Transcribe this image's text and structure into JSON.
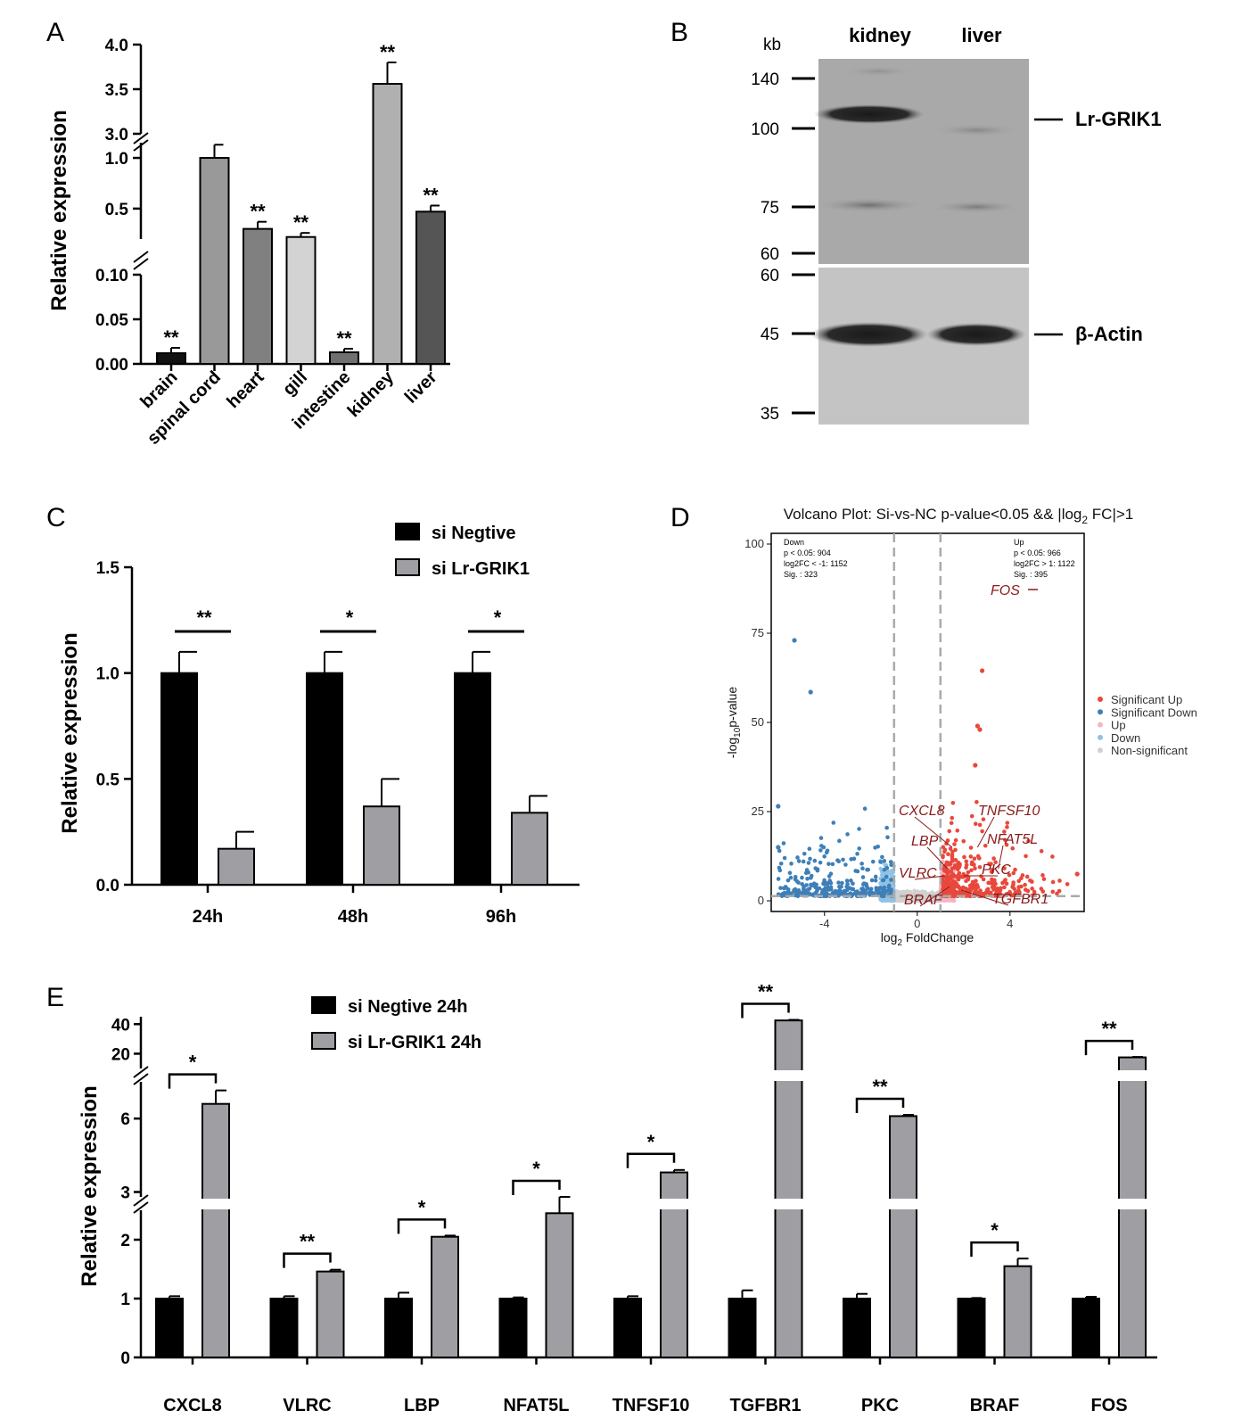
{
  "panels": {
    "A": "A",
    "B": "B",
    "C": "C",
    "D": "D",
    "E": "E"
  },
  "chart_data": [
    {
      "panel": "A",
      "type": "bar",
      "ylabel": "Relative expression",
      "broken_axis": true,
      "segments": [
        {
          "range": [
            0,
            0.1
          ],
          "ticks": [
            0.0,
            0.05,
            0.1
          ],
          "tick_labels": [
            "0.00",
            "0.05",
            "0.10"
          ]
        },
        {
          "range": [
            0.2,
            1.15
          ],
          "ticks": [
            0.5,
            1.0
          ],
          "tick_labels": [
            "0.5",
            "1.0"
          ]
        },
        {
          "range": [
            3.0,
            4.0
          ],
          "ticks": [
            3.0,
            3.5,
            4.0
          ],
          "tick_labels": [
            "3.0",
            "3.5",
            "4.0"
          ]
        }
      ],
      "categories": [
        "brain",
        "spinal cord",
        "heart",
        "gill",
        "intestine",
        "kidney",
        "liver"
      ],
      "values": [
        0.012,
        1.0,
        0.3,
        0.22,
        0.013,
        3.56,
        0.47
      ],
      "errors": [
        0.006,
        0.13,
        0.07,
        0.04,
        0.004,
        0.24,
        0.06
      ],
      "colors": [
        "#111111",
        "#999999",
        "#808080",
        "#d3d3d3",
        "#707070",
        "#b0b0b0",
        "#555555"
      ],
      "significance": [
        "**",
        "",
        "**",
        "**",
        "**",
        "**",
        "**"
      ]
    },
    {
      "panel": "C",
      "type": "bar",
      "ylabel": "Relative expression",
      "ylim": [
        0,
        1.5
      ],
      "ticks": [
        0.0,
        0.5,
        1.0,
        1.5
      ],
      "tick_labels": [
        "0.0",
        "0.5",
        "1.0",
        "1.5"
      ],
      "categories": [
        "24h",
        "48h",
        "96h"
      ],
      "series": [
        {
          "name": "si Negtive",
          "color": "#000000",
          "values": [
            1.0,
            1.0,
            1.0
          ],
          "errors": [
            0.1,
            0.1,
            0.1
          ]
        },
        {
          "name": "si Lr-GRIK1",
          "color": "#9e9ea3",
          "values": [
            0.17,
            0.37,
            0.34
          ],
          "errors": [
            0.08,
            0.13,
            0.08
          ]
        }
      ],
      "significance": [
        "**",
        "*",
        "*"
      ]
    },
    {
      "panel": "D",
      "type": "scatter",
      "title": "Volcano Plot: Si-vs-NC p-value<0.05 && |log2 FC|>1",
      "title_parts": {
        "pre": "Volcano Plot: Si-vs-NC p-value<0.05 && |log",
        "sub": "2",
        "post": " FC|>1"
      },
      "xlabel_parts": {
        "pre": "log",
        "sub": "2",
        "post": " FoldChange"
      },
      "ylabel_parts": {
        "pre": "-log",
        "sub": "10",
        "post": "p-value"
      },
      "xlim": [
        -6.3,
        7.2
      ],
      "ylim": [
        -3,
        103
      ],
      "xticks": [
        -4,
        0,
        4
      ],
      "xtick_labels": [
        "-4",
        "0",
        "4"
      ],
      "yticks": [
        0,
        25,
        50,
        75,
        100
      ],
      "ytick_labels": [
        "0",
        "25",
        "50",
        "75",
        "100"
      ],
      "legend": [
        {
          "label": "Significant Up",
          "color": "#e8483b"
        },
        {
          "label": "Significant Down",
          "color": "#3f7fb8"
        },
        {
          "label": "Up",
          "color": "#f4b6bf"
        },
        {
          "label": "Down",
          "color": "#8ec3e6"
        },
        {
          "label": "Non-significant",
          "color": "#d0d0d0"
        }
      ],
      "down_info": [
        "Down",
        "p < 0.05: 904",
        "log2FC < -1: 1152",
        "Sig. : 323"
      ],
      "up_info": [
        "Up",
        "p < 0.05: 966",
        "log2FC > 1: 1122",
        "Sig. : 395"
      ],
      "labeled_genes": [
        {
          "name": "FOS",
          "x": 4.2,
          "y": 100
        },
        {
          "name": "CXCL8",
          "x": 1.5,
          "y": 15
        },
        {
          "name": "TNFSF10",
          "x": 2.6,
          "y": 15
        },
        {
          "name": "LBP",
          "x": 1.3,
          "y": 9
        },
        {
          "name": "NFAT5L",
          "x": 3.5,
          "y": 9
        },
        {
          "name": "VLRC",
          "x": 1.2,
          "y": 7
        },
        {
          "name": "PKC",
          "x": 2.0,
          "y": 7
        },
        {
          "name": "BRAF",
          "x": 1.4,
          "y": 4
        },
        {
          "name": "TGFBR1",
          "x": 1.9,
          "y": 3
        }
      ],
      "highlight_points": [
        {
          "x": -5.3,
          "y": 73,
          "group": "down"
        },
        {
          "x": -4.6,
          "y": 58.5,
          "group": "down"
        },
        {
          "x": -6.0,
          "y": 26.5,
          "group": "down"
        },
        {
          "x": -6.0,
          "y": 15,
          "group": "down"
        },
        {
          "x": 2.8,
          "y": 64.5,
          "group": "up"
        },
        {
          "x": 2.6,
          "y": 49,
          "group": "up"
        },
        {
          "x": 2.7,
          "y": 48,
          "group": "up"
        },
        {
          "x": 2.5,
          "y": 38,
          "group": "up"
        },
        {
          "x": 6.9,
          "y": 7.5,
          "group": "up"
        }
      ]
    },
    {
      "panel": "E",
      "type": "bar",
      "ylabel": "Relative expression",
      "broken_axis": true,
      "segments": [
        {
          "range": [
            0,
            2.5
          ],
          "ticks": [
            0,
            1,
            2
          ],
          "tick_labels": [
            "0",
            "1",
            "2"
          ]
        },
        {
          "range": [
            2.8,
            7.5
          ],
          "ticks": [
            3,
            6
          ],
          "tick_labels": [
            "3",
            "6"
          ]
        },
        {
          "range": [
            10,
            45
          ],
          "ticks": [
            20,
            40
          ],
          "tick_labels": [
            "20",
            "40"
          ]
        }
      ],
      "categories": [
        "CXCL8",
        "VLRC",
        "LBP",
        "NFAT5L",
        "TNFSF10",
        "TGFBR1",
        "PKC",
        "BRAF",
        "FOS"
      ],
      "series": [
        {
          "name": "si Negtive 24h",
          "color": "#000000",
          "values": [
            1.0,
            1.0,
            1.0,
            1.0,
            1.0,
            1.0,
            1.0,
            1.0,
            1.0
          ],
          "errors": [
            0.04,
            0.04,
            0.1,
            0.02,
            0.04,
            0.14,
            0.08,
            0.01,
            0.03
          ]
        },
        {
          "name": "si Lr-GRIK1 24h",
          "color": "#9e9ea3",
          "values": [
            6.6,
            1.46,
            2.05,
            2.45,
            3.8,
            42.5,
            6.1,
            1.55,
            17.5
          ],
          "errors": [
            0.55,
            0.03,
            0.02,
            0.07,
            0.1,
            0.4,
            0.05,
            0.13,
            0.3
          ]
        }
      ],
      "significance": [
        "*",
        "**",
        "*",
        "*",
        "*",
        "**",
        "**",
        "*",
        "**"
      ]
    }
  ],
  "western_blot": {
    "unit": "kb",
    "lanes": [
      "kidney",
      "liver"
    ],
    "top_markers": [
      "140",
      "100",
      "75",
      "60"
    ],
    "bottom_markers": [
      "60",
      "45",
      "35"
    ],
    "bands": [
      "Lr-GRIK1",
      "β-Actin"
    ]
  }
}
